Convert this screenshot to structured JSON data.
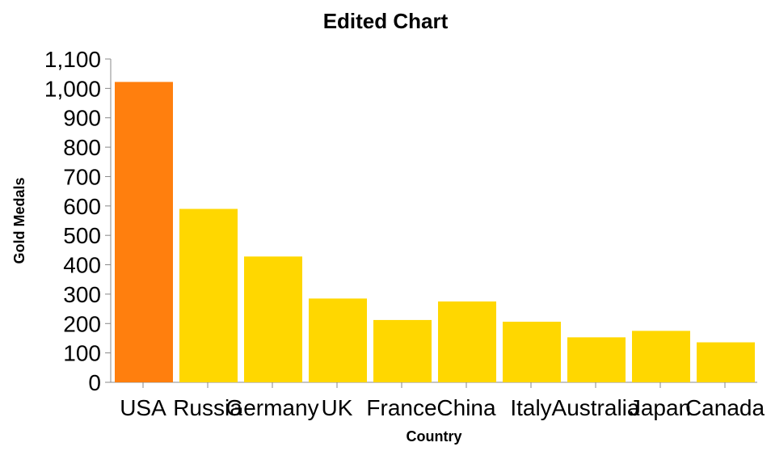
{
  "chart_data": {
    "type": "bar",
    "title": "Edited Chart",
    "xlabel": "Country",
    "ylabel": "Gold Medals",
    "categories": [
      "USA",
      "Russia",
      "Germany",
      "UK",
      "France",
      "China",
      "Italy",
      "Australia",
      "Japan",
      "Canada"
    ],
    "values": [
      1022,
      590,
      428,
      285,
      212,
      275,
      206,
      153,
      175,
      136
    ],
    "ylim": [
      0,
      1100
    ],
    "yticks": [
      "0",
      "100",
      "200",
      "300",
      "400",
      "500",
      "600",
      "700",
      "800",
      "900",
      "1,000",
      "1,100"
    ],
    "highlight_index": 0,
    "colors": {
      "highlight": "#FF7F0E",
      "default": "#FFD700"
    },
    "grid": false
  }
}
